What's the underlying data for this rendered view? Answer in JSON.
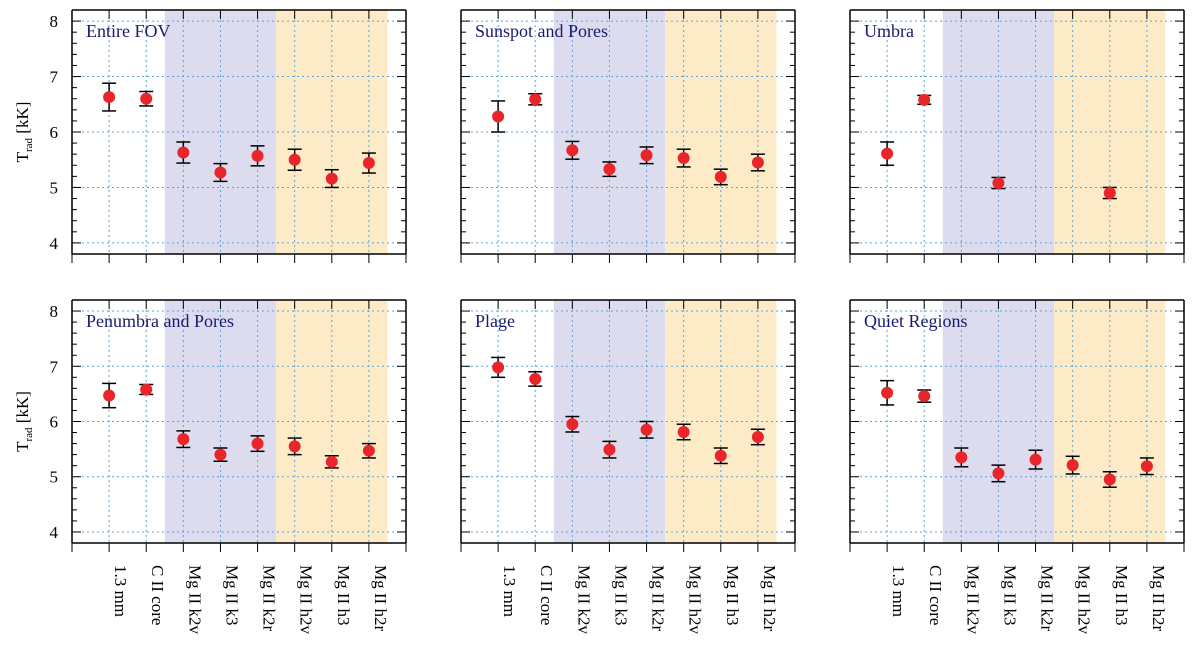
{
  "colors": {
    "marker": "#e8262a",
    "grid": "#5aa6d6",
    "k_band": "#dcdcee",
    "h_band": "#fdebc8",
    "title": "#1a1a6e"
  },
  "chart_data": {
    "type": "scatter",
    "ylabel_main": "T",
    "ylabel_sub": "rad",
    "ylabel_unit": " [kK]",
    "ylim": [
      3.8,
      8.2
    ],
    "yticks": [
      "4",
      "5",
      "6",
      "7",
      "8"
    ],
    "categories": [
      "1.3 mm",
      "C II core",
      "Mg II k2v",
      "Mg II k3",
      "Mg II k2r",
      "Mg II h2v",
      "Mg II h3",
      "Mg II h2r"
    ],
    "grid": true,
    "shaded_groups": [
      {
        "from_index": 2,
        "to_index": 4,
        "color_key": "k_band"
      },
      {
        "from_index": 5,
        "to_index": 7,
        "color_key": "h_band"
      }
    ],
    "panels": [
      {
        "title": "Entire FOV",
        "points": [
          {
            "category": "1.3 mm",
            "value": 6.63,
            "err": 0.25
          },
          {
            "category": "C II core",
            "value": 6.6,
            "err": 0.13
          },
          {
            "category": "Mg II k2v",
            "value": 5.63,
            "err": 0.19
          },
          {
            "category": "Mg II k3",
            "value": 5.27,
            "err": 0.16
          },
          {
            "category": "Mg II k2r",
            "value": 5.57,
            "err": 0.18
          },
          {
            "category": "Mg II h2v",
            "value": 5.5,
            "err": 0.19
          },
          {
            "category": "Mg II h3",
            "value": 5.16,
            "err": 0.16
          },
          {
            "category": "Mg II h2r",
            "value": 5.44,
            "err": 0.18
          }
        ]
      },
      {
        "title": "Sunspot and Pores",
        "points": [
          {
            "category": "1.3 mm",
            "value": 6.28,
            "err": 0.28
          },
          {
            "category": "C II core",
            "value": 6.59,
            "err": 0.1
          },
          {
            "category": "Mg II k2v",
            "value": 5.67,
            "err": 0.16
          },
          {
            "category": "Mg II k3",
            "value": 5.33,
            "err": 0.13
          },
          {
            "category": "Mg II k2r",
            "value": 5.58,
            "err": 0.15
          },
          {
            "category": "Mg II h2v",
            "value": 5.53,
            "err": 0.16
          },
          {
            "category": "Mg II h3",
            "value": 5.19,
            "err": 0.14
          },
          {
            "category": "Mg II h2r",
            "value": 5.45,
            "err": 0.15
          }
        ]
      },
      {
        "title": "Umbra",
        "points": [
          {
            "category": "1.3 mm",
            "value": 5.61,
            "err": 0.21
          },
          {
            "category": "C II core",
            "value": 6.58,
            "err": 0.08
          },
          {
            "category": "Mg II k3",
            "value": 5.08,
            "err": 0.1
          },
          {
            "category": "Mg II h3",
            "value": 4.9,
            "err": 0.1
          }
        ]
      },
      {
        "title": "Penumbra and Pores",
        "points": [
          {
            "category": "1.3 mm",
            "value": 6.47,
            "err": 0.22
          },
          {
            "category": "C II core",
            "value": 6.58,
            "err": 0.09
          },
          {
            "category": "Mg II k2v",
            "value": 5.68,
            "err": 0.15
          },
          {
            "category": "Mg II k3",
            "value": 5.4,
            "err": 0.12
          },
          {
            "category": "Mg II k2r",
            "value": 5.6,
            "err": 0.14
          },
          {
            "category": "Mg II h2v",
            "value": 5.55,
            "err": 0.15
          },
          {
            "category": "Mg II h3",
            "value": 5.27,
            "err": 0.11
          },
          {
            "category": "Mg II h2r",
            "value": 5.47,
            "err": 0.13
          }
        ]
      },
      {
        "title": "Plage",
        "points": [
          {
            "category": "1.3 mm",
            "value": 6.98,
            "err": 0.18
          },
          {
            "category": "C II core",
            "value": 6.77,
            "err": 0.13
          },
          {
            "category": "Mg II k2v",
            "value": 5.95,
            "err": 0.14
          },
          {
            "category": "Mg II k3",
            "value": 5.49,
            "err": 0.15
          },
          {
            "category": "Mg II k2r",
            "value": 5.85,
            "err": 0.15
          },
          {
            "category": "Mg II h2v",
            "value": 5.81,
            "err": 0.14
          },
          {
            "category": "Mg II h3",
            "value": 5.38,
            "err": 0.14
          },
          {
            "category": "Mg II h2r",
            "value": 5.72,
            "err": 0.14
          }
        ]
      },
      {
        "title": "Quiet Regions",
        "points": [
          {
            "category": "1.3 mm",
            "value": 6.52,
            "err": 0.22
          },
          {
            "category": "C II core",
            "value": 6.46,
            "err": 0.11
          },
          {
            "category": "Mg II k2v",
            "value": 5.35,
            "err": 0.17
          },
          {
            "category": "Mg II k3",
            "value": 5.06,
            "err": 0.15
          },
          {
            "category": "Mg II k2r",
            "value": 5.31,
            "err": 0.17
          },
          {
            "category": "Mg II h2v",
            "value": 5.21,
            "err": 0.16
          },
          {
            "category": "Mg II h3",
            "value": 4.95,
            "err": 0.14
          },
          {
            "category": "Mg II h2r",
            "value": 5.19,
            "err": 0.15
          }
        ]
      }
    ]
  }
}
